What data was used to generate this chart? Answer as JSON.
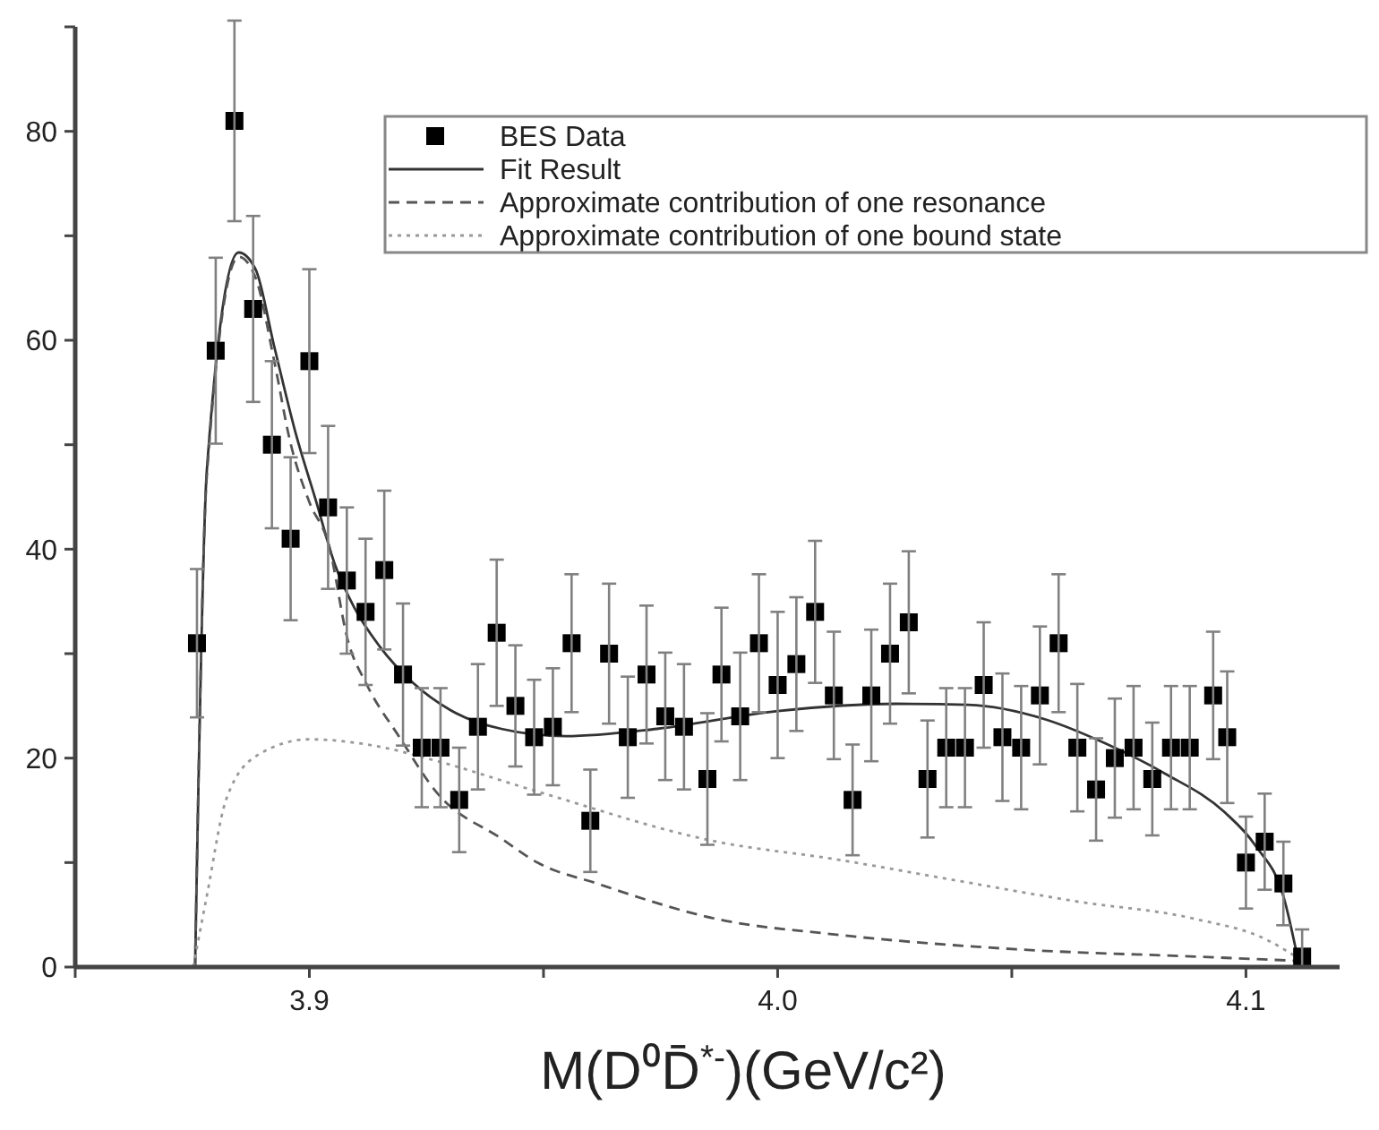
{
  "chart_data": {
    "type": "scatter",
    "xlabel": "M(D⁰D̄$^{*-}$)(GeV/c²)",
    "xlim": [
      3.85,
      4.12
    ],
    "xticks": [
      {
        "value": 3.85,
        "label": null
      },
      3.9,
      {
        "value": 3.95,
        "label": null
      },
      {
        "value": 4.0,
        "label": "4.0"
      },
      {
        "value": 4.05,
        "label": null
      },
      4.1
    ],
    "ylim": [
      0,
      90
    ],
    "yticks": [
      0,
      {
        "value": 10,
        "label": null
      },
      20,
      {
        "value": 30,
        "label": null
      },
      40,
      {
        "value": 50,
        "label": null
      },
      60,
      {
        "value": 70,
        "label": null
      },
      80,
      {
        "value": 90,
        "label": null
      }
    ],
    "grid": false,
    "legend": "top right",
    "series": [
      {
        "name": "BES Data",
        "marker": "square",
        "color": "#000000",
        "x": [
          3.876,
          3.88,
          3.884,
          3.888,
          3.892,
          3.896,
          3.9,
          3.904,
          3.908,
          3.912,
          3.916,
          3.92,
          3.924,
          3.928,
          3.932,
          3.936,
          3.94,
          3.944,
          3.948,
          3.952,
          3.956,
          3.96,
          3.964,
          3.968,
          3.972,
          3.976,
          3.98,
          3.985,
          3.988,
          3.992,
          3.996,
          4.0,
          4.004,
          4.008,
          4.012,
          4.016,
          4.02,
          4.024,
          4.028,
          4.032,
          4.036,
          4.04,
          4.044,
          4.048,
          4.052,
          4.056,
          4.06,
          4.064,
          4.068,
          4.072,
          4.076,
          4.08,
          4.084,
          4.088,
          4.093,
          4.096,
          4.1,
          4.104,
          4.108,
          4.112
        ],
        "values": [
          31,
          59,
          81,
          63,
          50,
          41,
          58,
          44,
          37,
          34,
          38,
          28,
          21,
          21,
          16,
          23,
          32,
          25,
          22,
          23,
          31,
          14,
          30,
          22,
          28,
          24,
          23,
          18,
          28,
          24,
          31,
          27,
          29,
          34,
          26,
          16,
          26,
          30,
          33,
          18,
          21,
          21,
          27,
          22,
          21,
          26,
          31,
          21,
          17,
          20,
          21,
          18,
          21,
          21,
          26,
          22,
          10,
          12,
          8,
          1
        ],
        "errors": [
          7.1,
          8.9,
          9.6,
          8.9,
          8.0,
          7.8,
          8.8,
          7.8,
          7.0,
          7.0,
          7.6,
          6.8,
          5.7,
          5.7,
          5.0,
          6.0,
          7.0,
          5.8,
          5.5,
          5.6,
          6.6,
          4.9,
          6.7,
          5.8,
          6.6,
          6.1,
          6.0,
          6.3,
          6.4,
          6.1,
          6.6,
          7.0,
          6.4,
          6.8,
          6.1,
          5.3,
          6.3,
          6.7,
          6.8,
          5.6,
          5.7,
          5.7,
          6.0,
          6.1,
          5.9,
          6.6,
          6.6,
          6.1,
          4.9,
          5.7,
          5.9,
          5.4,
          5.9,
          5.9,
          6.1,
          6.3,
          4.4,
          4.6,
          4.0,
          [
            0,
            3.6
          ]
        ]
      },
      {
        "name": "Fit Result",
        "type": "line",
        "line_style": "solid",
        "color": "#333333",
        "x": [
          3.8756,
          3.8781,
          3.8849,
          3.8885,
          3.8925,
          3.8972,
          3.9013,
          3.9054,
          3.9096,
          3.915,
          3.9219,
          3.9301,
          3.941,
          3.9547,
          3.9742,
          4.0,
          4.0253,
          4.0406,
          4.0572,
          4.07,
          4.0828,
          4.0955,
          4.1019,
          4.1083,
          4.1108
        ],
        "values": [
          0,
          47.5,
          68.4,
          66.8,
          59.4,
          50.9,
          44.8,
          38.6,
          34.4,
          30.7,
          27.3,
          24.6,
          22.8,
          22.1,
          22.8,
          24.5,
          25.2,
          25.1,
          23.7,
          21.4,
          18.5,
          14.8,
          11.7,
          6.3,
          1.4
        ]
      },
      {
        "name": "Approximate contribution of one resonance",
        "type": "line",
        "line_style": "dashed",
        "color": "#555555",
        "x": [
          3.8756,
          3.8781,
          3.8849,
          3.8885,
          3.8925,
          3.8959,
          3.9,
          3.9041,
          3.9082,
          3.9123,
          3.9191,
          3.9274,
          3.941,
          3.9487,
          3.9614,
          3.987,
          4.0126,
          4.0509,
          4.0892,
          4.1108
        ],
        "values": [
          0,
          47,
          68,
          66,
          58,
          50.3,
          44.5,
          40.5,
          31.3,
          27,
          22.1,
          16.6,
          12.3,
          10,
          8,
          4.6,
          3.1,
          1.7,
          1,
          0.6
        ]
      },
      {
        "name": "Approximate contribution of one bound state",
        "type": "line",
        "line_style": "dotted",
        "color": "#999999",
        "x": [
          3.8752,
          3.8781,
          3.8822,
          3.889,
          3.9,
          3.9137,
          3.9274,
          3.9487,
          3.987,
          4.0126,
          4.038,
          4.0636,
          4.0892,
          4.1045,
          4.1103
        ],
        "values": [
          0,
          6.8,
          16,
          20.3,
          21.8,
          21.2,
          19.7,
          16.8,
          12,
          10.3,
          8.3,
          6.3,
          4.6,
          2.6,
          1.1
        ]
      }
    ]
  }
}
